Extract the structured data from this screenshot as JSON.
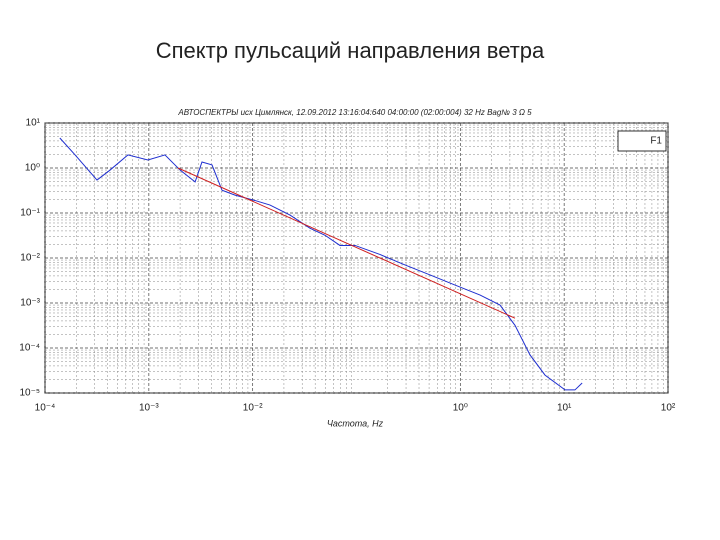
{
  "slide_title": "Спектр пульсаций направления ветра",
  "chart_data": {
    "type": "line",
    "title": "АВТОСПЕКТРЫ исх Цимлянск, 12.09.2012 13:16:04:640 04:00:00 (02:00:004) 32 Hz Bag№ 3 Ω 5",
    "x_label": "Частота, Hz",
    "x_log": true,
    "y_log": true,
    "grid": true,
    "legend_position": "upper right",
    "xlim": [
      0.0001,
      100
    ],
    "ylim": [
      1e-05,
      10
    ],
    "xticks": [
      {
        "value": 0.0001,
        "label": "10⁻⁴"
      },
      {
        "value": 0.001,
        "label": "10⁻³"
      },
      {
        "value": 0.01,
        "label": "10⁻²"
      },
      {
        "value": 1,
        "label": "10⁰"
      },
      {
        "value": 10,
        "label": "10¹"
      },
      {
        "value": 100,
        "label": "10²"
      }
    ],
    "yticks": [
      {
        "value": 10,
        "label": "10¹"
      },
      {
        "value": 1,
        "label": "10⁰"
      },
      {
        "value": 0.1,
        "label": "10⁻¹"
      },
      {
        "value": 0.01,
        "label": "10⁻²"
      },
      {
        "value": 0.001,
        "label": "10⁻³"
      },
      {
        "value": 0.0001,
        "label": "10⁻⁴"
      },
      {
        "value": 1e-05,
        "label": "10⁻⁵"
      }
    ],
    "series": [
      {
        "name": "F1",
        "color": "#1f2fd0",
        "x": [
          0.000139,
          0.000195,
          0.000317,
          0.000423,
          0.000629,
          0.00098,
          0.00143,
          0.002,
          0.00279,
          0.00325,
          0.00406,
          0.00507,
          0.00676,
          0.0105,
          0.0147,
          0.0229,
          0.0356,
          0.0498,
          0.0693,
          0.0968,
          0.168,
          0.293,
          0.511,
          0.889,
          1.55,
          2.41,
          3.36,
          4.69,
          6.54,
          10.2,
          12.7,
          14.9
        ],
        "values": [
          4.64,
          1.95,
          0.54,
          0.9,
          1.95,
          1.51,
          1.95,
          0.9,
          0.49,
          1.36,
          1.17,
          0.32,
          0.25,
          0.19,
          0.15,
          0.09,
          0.046,
          0.032,
          0.019,
          0.019,
          0.012,
          0.007,
          0.0042,
          0.0025,
          0.0015,
          0.0009,
          0.00032,
          7e-05,
          2.5e-05,
          1.17e-05,
          1.17e-05,
          1.67e-05
        ]
      },
      {
        "color": "#d01f1f",
        "x": [
          0.00191,
          3.36
        ],
        "values": [
          1,
          0.00046
        ]
      }
    ]
  }
}
